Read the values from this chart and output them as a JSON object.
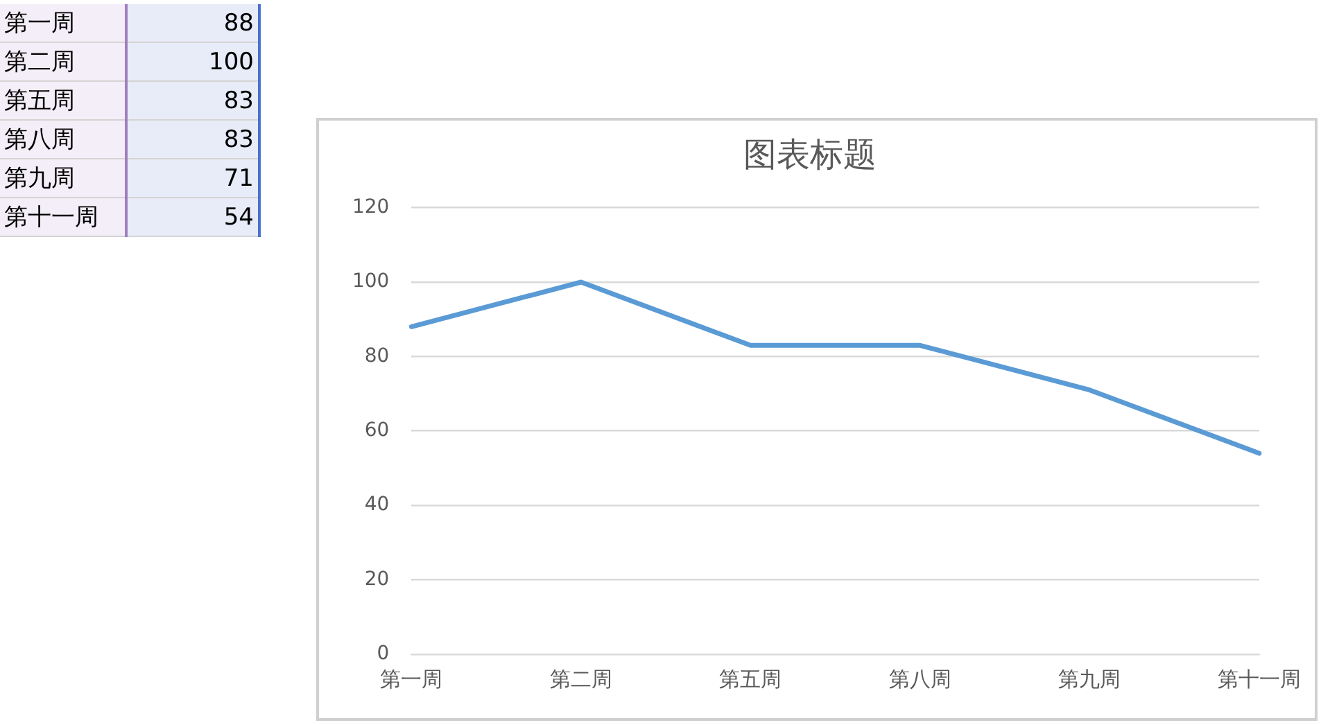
{
  "chart_data": [
    {
      "type": "other",
      "categories": [
        "第一周",
        "第二周",
        "第五周",
        "第八周",
        "第九周",
        "第十一周"
      ],
      "values": [
        88,
        100,
        83,
        83,
        71,
        54
      ],
      "data_labels": true
    },
    {
      "type": "line",
      "title": "图表标题",
      "categories": [
        "第一周",
        "第二周",
        "第五周",
        "第八周",
        "第九周",
        "第十一周"
      ],
      "series": [
        {
          "color": "#5b9bd5",
          "values": [
            88,
            100,
            83,
            83,
            71,
            54
          ]
        }
      ],
      "ylim": [
        0,
        120
      ],
      "yticks": [
        0,
        20,
        40,
        60,
        80,
        100,
        120
      ],
      "grid": "y",
      "legend": false,
      "marker": "none"
    }
  ]
}
